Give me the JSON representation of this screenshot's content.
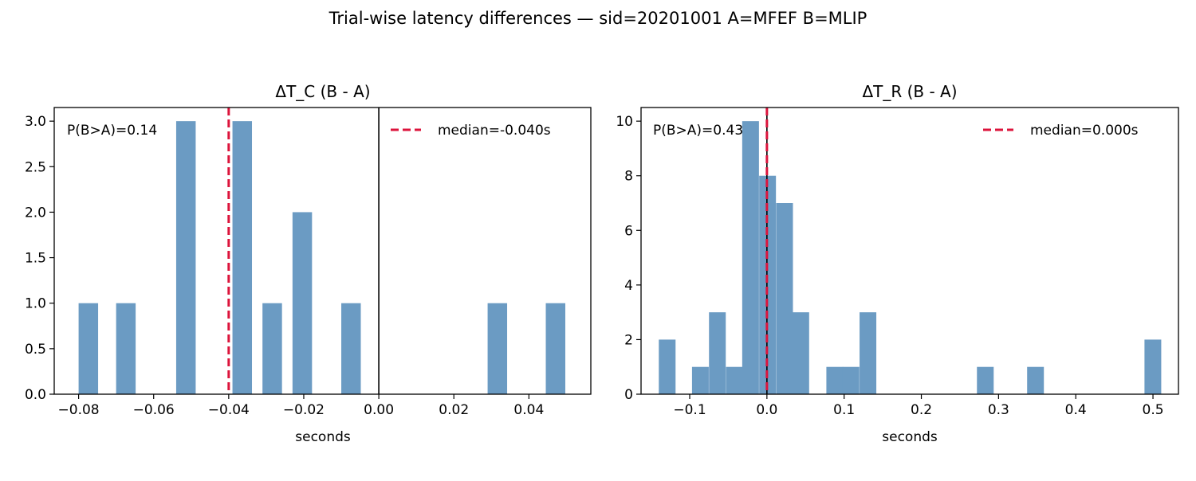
{
  "suptitle": "Trial-wise latency differences — sid=20201001  A=MFEF  B=MLIP",
  "colors": {
    "bar": "#6b9bc3",
    "median": "#dc143c",
    "zero": "#000000"
  },
  "chart_data": [
    {
      "type": "bar",
      "title": "ΔT_C (B - A)",
      "xlabel": "seconds",
      "ylabel": "",
      "xlim": [
        -0.0865,
        0.0565
      ],
      "ylim": [
        0,
        3.15
      ],
      "bin_width": 0.0052,
      "bins": [
        {
          "x0": -0.08,
          "count": 1
        },
        {
          "x0": -0.07,
          "count": 1
        },
        {
          "x0": -0.054,
          "count": 3
        },
        {
          "x0": -0.039,
          "count": 3
        },
        {
          "x0": -0.031,
          "count": 1
        },
        {
          "x0": -0.023,
          "count": 2
        },
        {
          "x0": -0.01,
          "count": 1
        },
        {
          "x0": 0.029,
          "count": 1
        },
        {
          "x0": 0.0445,
          "count": 1
        }
      ],
      "xticks": [
        -0.08,
        -0.06,
        -0.04,
        -0.02,
        0.0,
        0.02,
        0.04
      ],
      "xtick_labels": [
        "−0.08",
        "−0.06",
        "−0.04",
        "−0.02",
        "0.00",
        "0.02",
        "0.04"
      ],
      "yticks": [
        0.0,
        0.5,
        1.0,
        1.5,
        2.0,
        2.5,
        3.0
      ],
      "ytick_labels": [
        "0.0",
        "0.5",
        "1.0",
        "1.5",
        "2.0",
        "2.5",
        "3.0"
      ],
      "median": -0.04,
      "zero_line": 0.0,
      "annotation": "P(B>A)=0.14",
      "legend": {
        "label": "median=-0.040s",
        "placement": "top-right"
      }
    },
    {
      "type": "bar",
      "title": "ΔT_R (B - A)",
      "xlabel": "seconds",
      "ylabel": "",
      "xlim": [
        -0.163,
        0.533
      ],
      "ylim": [
        0,
        10.5
      ],
      "bin_width": 0.0217,
      "bins": [
        {
          "x0": -0.14,
          "count": 2
        },
        {
          "x0": -0.097,
          "count": 1
        },
        {
          "x0": -0.075,
          "count": 3
        },
        {
          "x0": -0.053,
          "count": 1
        },
        {
          "x0": -0.032,
          "count": 10
        },
        {
          "x0": -0.01,
          "count": 8
        },
        {
          "x0": 0.012,
          "count": 7
        },
        {
          "x0": 0.033,
          "count": 3
        },
        {
          "x0": 0.077,
          "count": 1
        },
        {
          "x0": 0.098,
          "count": 1
        },
        {
          "x0": 0.12,
          "count": 3
        },
        {
          "x0": 0.272,
          "count": 1
        },
        {
          "x0": 0.337,
          "count": 1
        },
        {
          "x0": 0.489,
          "count": 2
        }
      ],
      "xticks": [
        -0.1,
        0.0,
        0.1,
        0.2,
        0.3,
        0.4,
        0.5
      ],
      "xtick_labels": [
        "−0.1",
        "0.0",
        "0.1",
        "0.2",
        "0.3",
        "0.4",
        "0.5"
      ],
      "yticks": [
        0,
        2,
        4,
        6,
        8,
        10
      ],
      "ytick_labels": [
        "0",
        "2",
        "4",
        "6",
        "8",
        "10"
      ],
      "median": 0.0,
      "zero_line": 0.0,
      "annotation": "P(B>A)=0.43",
      "legend": {
        "label": "median=0.000s",
        "placement": "top-right"
      }
    }
  ]
}
